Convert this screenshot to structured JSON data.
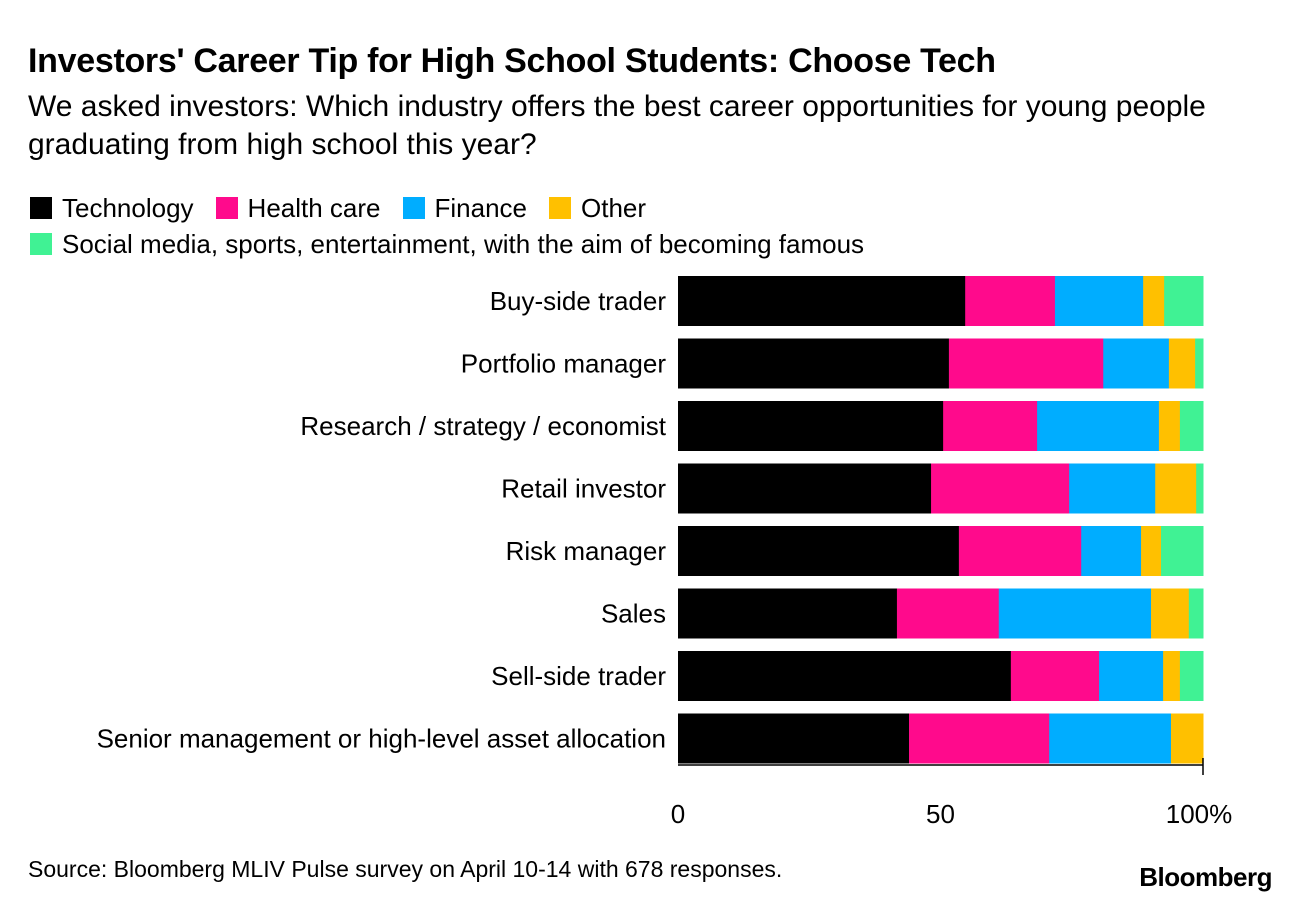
{
  "chart_data": {
    "type": "bar",
    "orientation": "horizontal",
    "stacked": true,
    "title": "Investors' Career Tip for High School Students: Choose Tech",
    "subtitle": "We asked investors: Which industry offers the best career opportunities for young people graduating from high school this year?",
    "categories": [
      "Buy-side trader",
      "Portfolio manager",
      "Research / strategy / economist",
      "Retail investor",
      "Risk manager",
      "Sales",
      "Sell-side trader",
      "Senior management or high-level asset allocation"
    ],
    "series": [
      {
        "name": "Technology",
        "color": "#000000",
        "values": [
          54.7,
          51.6,
          50.5,
          48.2,
          53.5,
          41.7,
          63.4,
          44.0
        ]
      },
      {
        "name": "Health care",
        "color": "#ff0a8c",
        "values": [
          17.1,
          29.4,
          17.9,
          26.3,
          23.3,
          19.4,
          16.8,
          26.7
        ]
      },
      {
        "name": "Finance",
        "color": "#00adff",
        "values": [
          16.8,
          12.5,
          23.2,
          16.4,
          11.4,
          29.0,
          12.2,
          23.2
        ]
      },
      {
        "name": "Other",
        "color": "#ffc000",
        "values": [
          4.0,
          5.0,
          4.0,
          7.8,
          3.8,
          7.2,
          3.2,
          6.1
        ]
      },
      {
        "name": "Social media, sports, entertainment, with the aim of becoming famous",
        "color": "#40f294",
        "values": [
          7.4,
          1.5,
          4.4,
          1.3,
          8.0,
          2.7,
          4.4,
          0.0
        ]
      }
    ],
    "xlim": [
      0,
      100
    ],
    "xticks": [
      {
        "value": 0,
        "label": "0"
      },
      {
        "value": 50,
        "label": "50"
      },
      {
        "value": 100,
        "label": "100%"
      }
    ],
    "xlabel": "",
    "ylabel": "",
    "legend_position": "top-left",
    "grid": false
  },
  "source": "Source: Bloomberg MLIV Pulse survey on April 10-14 with 678 responses.",
  "logo": "Bloomberg"
}
